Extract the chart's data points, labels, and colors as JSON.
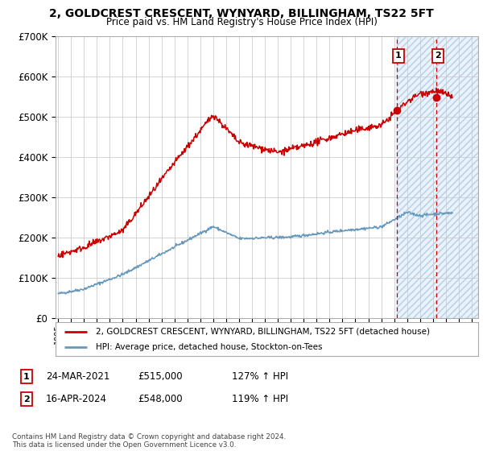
{
  "title": "2, GOLDCREST CRESCENT, WYNYARD, BILLINGHAM, TS22 5FT",
  "subtitle": "Price paid vs. HM Land Registry's House Price Index (HPI)",
  "ylim": [
    0,
    700000
  ],
  "yticks": [
    0,
    100000,
    200000,
    300000,
    400000,
    500000,
    600000,
    700000
  ],
  "ytick_labels": [
    "£0",
    "£100K",
    "£200K",
    "£300K",
    "£400K",
    "£500K",
    "£600K",
    "£700K"
  ],
  "xlim_start": 1994.8,
  "xlim_end": 2027.5,
  "xticks": [
    1995,
    1996,
    1997,
    1998,
    1999,
    2000,
    2001,
    2002,
    2003,
    2004,
    2005,
    2006,
    2007,
    2008,
    2009,
    2010,
    2011,
    2012,
    2013,
    2014,
    2015,
    2016,
    2017,
    2018,
    2019,
    2020,
    2021,
    2022,
    2023,
    2024,
    2025,
    2026,
    2027
  ],
  "red_line_color": "#cc0000",
  "blue_line_color": "#6699bb",
  "sale1_x": 2021.22,
  "sale1_y": 515000,
  "sale2_x": 2024.29,
  "sale2_y": 548000,
  "shade_start": 2021.22,
  "shade_end": 2027.5,
  "shade_color": "#ddeeff",
  "dashed_line1_x": 2021.22,
  "dashed_line2_x": 2024.29,
  "legend_line1": "2, GOLDCREST CRESCENT, WYNYARD, BILLINGHAM, TS22 5FT (detached house)",
  "legend_line2": "HPI: Average price, detached house, Stockton-on-Tees",
  "annot1_label": "1",
  "annot1_date": "24-MAR-2021",
  "annot1_price": "£515,000",
  "annot1_hpi": "127% ↑ HPI",
  "annot2_label": "2",
  "annot2_date": "16-APR-2024",
  "annot2_price": "£548,000",
  "annot2_hpi": "119% ↑ HPI",
  "footer": "Contains HM Land Registry data © Crown copyright and database right 2024.\nThis data is licensed under the Open Government Licence v3.0.",
  "background_color": "#ffffff",
  "grid_color": "#cccccc"
}
